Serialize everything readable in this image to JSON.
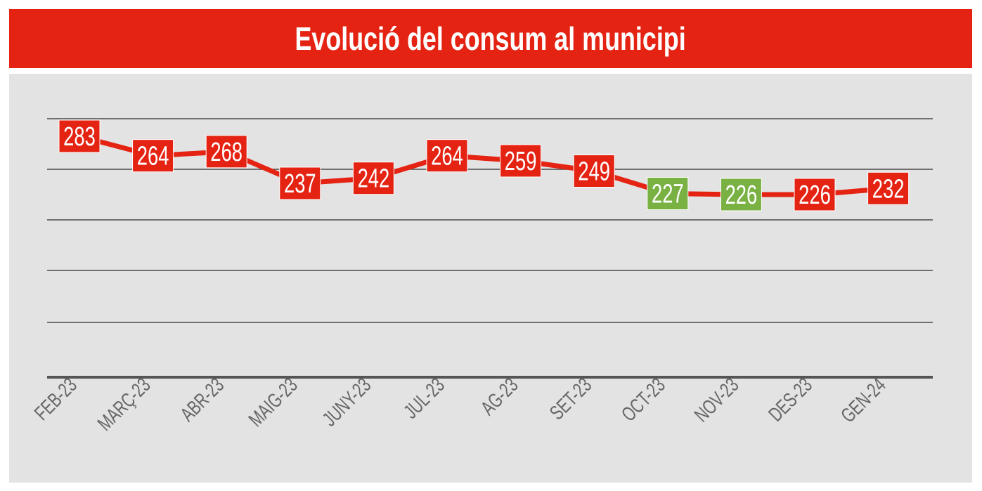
{
  "chart_data": {
    "type": "line",
    "title": "Evolució del consum al municipi",
    "xlabel": "",
    "ylabel": "",
    "categories": [
      "FEB-23",
      "MARÇ-23",
      "ABR-23",
      "MAIG-23",
      "JUNY-23",
      "JUL-23",
      "AG-23",
      "SET-23",
      "OCT-23",
      "NOV-23",
      "DES-23",
      "GEN-24"
    ],
    "values": [
      283,
      264,
      268,
      237,
      242,
      264,
      259,
      249,
      227,
      226,
      226,
      232
    ],
    "highlighted": [
      "OCT-23",
      "NOV-23"
    ],
    "grid": true,
    "legend": "none",
    "colors": {
      "line": "#e42313",
      "label_box": "#e42313",
      "label_box_highlight": "#79b143",
      "grid": "#4a4a4a",
      "axis": "#555555",
      "tick_text": "#666666",
      "background": "#e3e3e3"
    }
  }
}
